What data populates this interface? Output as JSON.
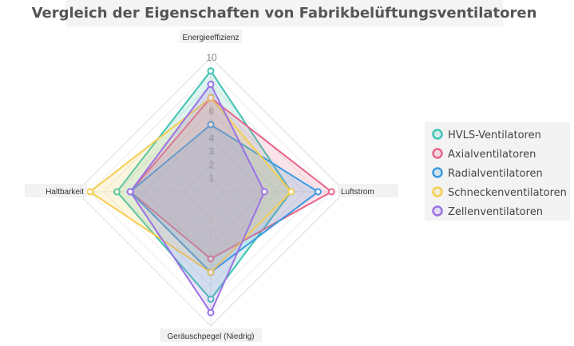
{
  "chart_data": {
    "type": "radar",
    "title": "Vergleich der Eigenschaften von Fabrikbelüftungsventilatoren",
    "axes": [
      "Energieeffizienz",
      "Luftstrom",
      "Geräuschpegel (Niedrig)",
      "Haltbarkeit"
    ],
    "rlim": [
      0,
      10
    ],
    "ticks": [
      "1",
      "2",
      "3",
      "4",
      "5",
      "6",
      "7",
      "8",
      "9",
      "10"
    ],
    "grid": true,
    "legend_position": "right",
    "series": [
      {
        "name": "HVLS-Ventilatoren",
        "color": "#40c4b4",
        "values": [
          9,
          6,
          8,
          7
        ]
      },
      {
        "name": "Axialventilatoren",
        "color": "#e8668a",
        "values": [
          7,
          9,
          5,
          6
        ]
      },
      {
        "name": "Radialventilatoren",
        "color": "#3a9ae0",
        "values": [
          5,
          8,
          6,
          6
        ]
      },
      {
        "name": "Schneckenventilatoren",
        "color": "#f5cd50",
        "values": [
          7,
          6,
          6,
          9
        ]
      },
      {
        "name": "Zellenventilatoren",
        "color": "#9b72e4",
        "values": [
          8,
          4,
          9,
          6
        ]
      }
    ]
  }
}
